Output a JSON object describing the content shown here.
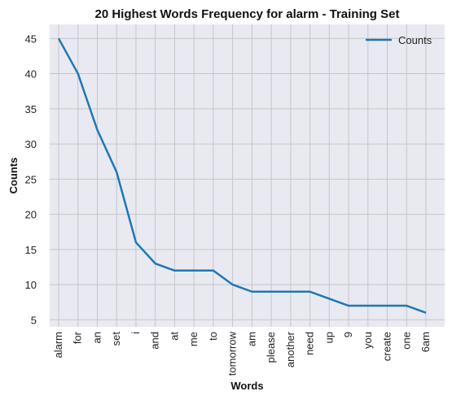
{
  "chart_data": {
    "type": "line",
    "title": "20 Highest Words Frequency for alarm - Training Set",
    "xlabel": "Words",
    "ylabel": "Counts",
    "categories": [
      "alarm",
      "for",
      "an",
      "set",
      "i",
      "and",
      "at",
      "me",
      "to",
      "tomorrow",
      "am",
      "please",
      "another",
      "need",
      "up",
      "9",
      "you",
      "create",
      "one",
      "6am"
    ],
    "series": [
      {
        "name": "Counts",
        "values": [
          45,
          40,
          32,
          26,
          16,
          13,
          12,
          12,
          12,
          10,
          9,
          9,
          9,
          9,
          8,
          7,
          7,
          7,
          7,
          6
        ]
      }
    ],
    "ylim": [
      4,
      47
    ],
    "yticks": [
      5,
      10,
      15,
      20,
      25,
      30,
      35,
      40,
      45
    ],
    "grid": true,
    "legend": "top-right",
    "colors": {
      "line": "#1f77b4",
      "plot_bg": "#e9eaf1",
      "grid": "#c3c5cb"
    }
  }
}
